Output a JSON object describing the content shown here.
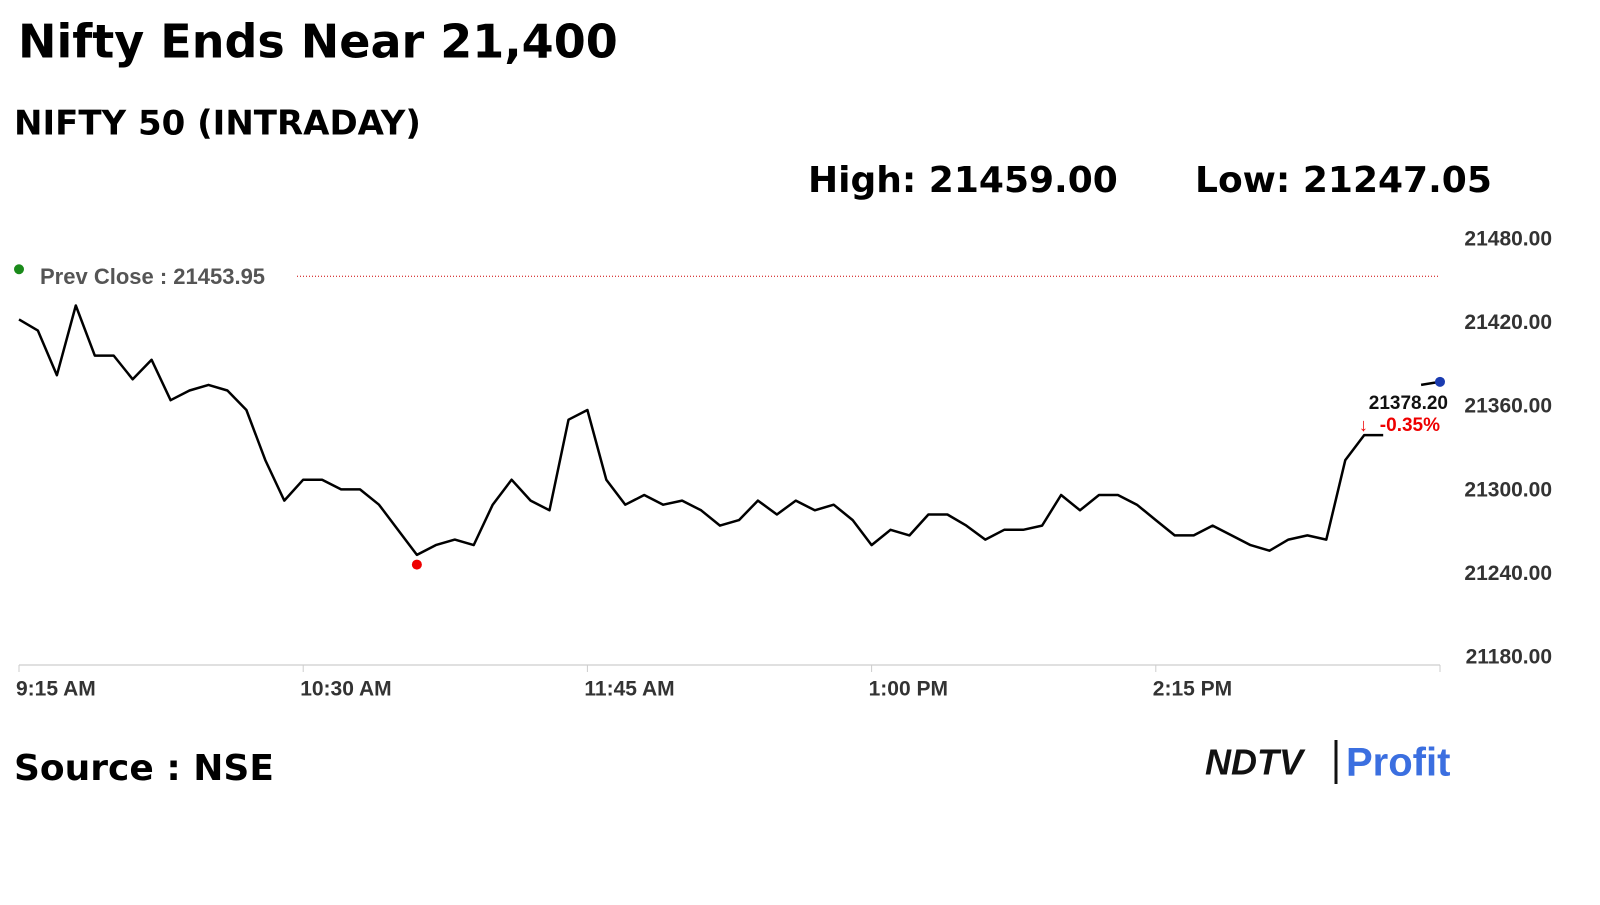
{
  "chart_data": {
    "type": "line",
    "title": "Nifty Ends Near 21,400",
    "subtitle": "NIFTY 50 (INTRADAY)",
    "high_label": "High: 21459.00",
    "low_label": "Low: 21247.05",
    "high": 21459.0,
    "low": 21247.05,
    "prev_close": {
      "value": 21453.95,
      "label": "Prev Close : 21453.95"
    },
    "last_value": "21378.20",
    "last_change": "-0.35%",
    "source": "Source : NSE",
    "logo": {
      "left": "NDTV",
      "right": "Profit"
    },
    "color": "#000000",
    "categories": [
      "9:15 AM",
      null,
      null,
      null,
      null,
      null,
      null,
      null,
      null,
      null,
      null,
      null,
      null,
      null,
      null,
      "10:30 AM",
      null,
      null,
      null,
      null,
      null,
      null,
      null,
      null,
      null,
      null,
      null,
      null,
      null,
      null,
      "11:45 AM",
      null,
      null,
      null,
      null,
      null,
      null,
      null,
      null,
      null,
      null,
      null,
      null,
      null,
      null,
      "1:00 PM",
      null,
      null,
      null,
      null,
      null,
      null,
      null,
      null,
      null,
      null,
      null,
      null,
      null,
      null,
      "2:15 PM",
      null,
      null,
      null,
      null,
      null,
      null,
      null,
      null,
      null,
      null,
      null,
      null,
      null,
      null,
      null
    ],
    "values": [
      21423,
      21415,
      21383,
      21433,
      21397,
      21397,
      21380,
      21394,
      21365,
      21372,
      21376,
      21372,
      21358,
      21322,
      21293,
      21308,
      21308,
      21301,
      21301,
      21290,
      21272,
      21254,
      21261,
      21265,
      21261,
      21290,
      21308,
      21293,
      21286,
      21351,
      21358,
      21308,
      21290,
      21297,
      21290,
      21293,
      21286,
      21275,
      21279,
      21293,
      21283,
      21293,
      21286,
      21290,
      21279,
      21261,
      21272,
      21268,
      21283,
      21283,
      21275,
      21265,
      21272,
      21272,
      21275,
      21297,
      21286,
      21297,
      21297,
      21290,
      21279,
      21268,
      21268,
      21275,
      21268,
      21261,
      21257,
      21265,
      21268,
      21265,
      21322,
      21340,
      21340,
      null,
      21376,
      21378.2
    ],
    "ylim": [
      21180,
      21480
    ],
    "yticks": [
      {
        "value": 21180,
        "label": "21180.00"
      },
      {
        "value": 21240,
        "label": "21240.00"
      },
      {
        "value": 21300,
        "label": "21300.00"
      },
      {
        "value": 21360,
        "label": "21360.00"
      },
      {
        "value": 21420,
        "label": "21420.00"
      },
      {
        "value": 21480,
        "label": "21480.00"
      }
    ],
    "grid": false
  }
}
